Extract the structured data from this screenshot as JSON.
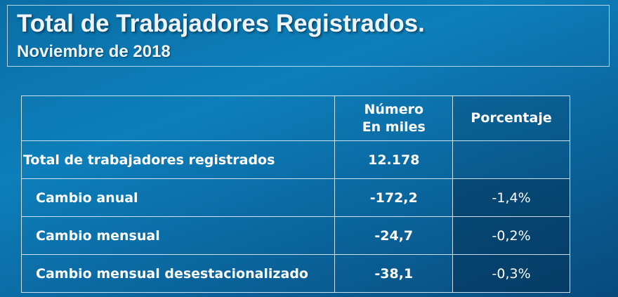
{
  "header": {
    "title": "Total de Trabajadores Registrados.",
    "subtitle": "Noviembre de 2018"
  },
  "table": {
    "columns": {
      "number_line1": "Número",
      "number_line2": "En miles",
      "percentage": "Porcentaje"
    },
    "rows": [
      {
        "label": "Total de trabajadores registrados",
        "value": "12.178",
        "percent": ""
      },
      {
        "label": "Cambio anual",
        "value": "-172,2",
        "percent": "-1,4%"
      },
      {
        "label": "Cambio mensual",
        "value": "-24,7",
        "percent": "-0,2%"
      },
      {
        "label": "Cambio mensual desestacionalizado",
        "value": "-38,1",
        "percent": "-0,3%"
      }
    ]
  }
}
